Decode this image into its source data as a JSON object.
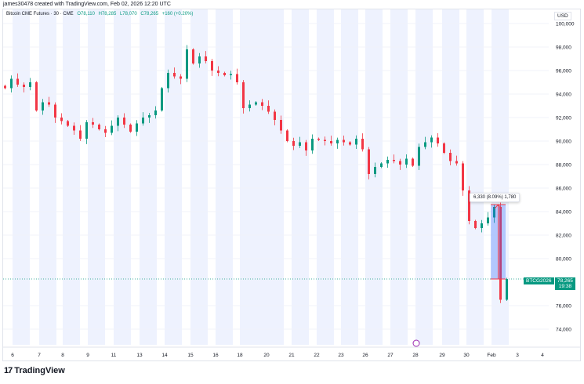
{
  "credit": "james30478 created with TradingView.com, Feb 02, 2026 12:20 UTC",
  "legend": {
    "symbol": "Bitcoin CME Futures · 30 · CME",
    "open": "O78,110",
    "high": "H78,285",
    "low": "L78,070",
    "close": "C78,265",
    "change": "+160 (+0.20%)"
  },
  "currency": "USD",
  "price_tag": {
    "symbol": "BTCG2026",
    "price": "78,265",
    "countdown": "19:38"
  },
  "measure_label": "6,330 (8.09%) 1,780",
  "logo_text": "TradingView",
  "colors": {
    "up": "#089981",
    "down": "#f23645",
    "session_band": "#eef2fe",
    "measure_fill": "#2962ff",
    "measure_line": "#f23645"
  },
  "chart_data": {
    "type": "candlestick",
    "title": "Bitcoin CME Futures · 30 · CME",
    "ylim": [
      73000,
      101000
    ],
    "y_ticks": [
      "100,000",
      "98,000",
      "96,000",
      "94,000",
      "92,000",
      "90,000",
      "88,000",
      "86,000",
      "84,000",
      "82,000",
      "80,000",
      "76,000",
      "74,000"
    ],
    "y_tick_values": [
      100000,
      98000,
      96000,
      94000,
      92000,
      90000,
      88000,
      86000,
      84000,
      82000,
      80000,
      76000,
      74000
    ],
    "x_ticks": [
      "6",
      "7",
      "8",
      "9",
      "11",
      "13",
      "14",
      "15",
      "16",
      "18",
      "20",
      "21",
      "22",
      "23",
      "26",
      "27",
      "28",
      "29",
      "30",
      "Feb",
      "3",
      "4"
    ],
    "closes": [
      94500,
      95300,
      94800,
      94600,
      95000,
      92600,
      93300,
      93100,
      92000,
      91700,
      91300,
      90900,
      90200,
      91600,
      91400,
      91000,
      90700,
      91300,
      92000,
      91400,
      90800,
      91500,
      92000,
      92200,
      92600,
      94500,
      95800,
      95500,
      95300,
      97800,
      96600,
      97200,
      96800,
      96000,
      95800,
      95600,
      95700,
      95000,
      92800,
      93100,
      93300,
      93000,
      92500,
      91800,
      90900,
      90000,
      89600,
      89900,
      89200,
      90200,
      90100,
      90000,
      89800,
      90100,
      89900,
      89700,
      90200,
      89300,
      87200,
      87800,
      88100,
      88400,
      88300,
      88000,
      88500,
      87900,
      89500,
      89900,
      90300,
      89800,
      89000,
      88300,
      88100,
      85800,
      83200,
      82600,
      83000,
      83500,
      84400,
      76500,
      78265
    ],
    "last_price": 78265,
    "measure": {
      "from": 78265,
      "to": 84595,
      "change": 6330,
      "percent": 8.09
    }
  }
}
